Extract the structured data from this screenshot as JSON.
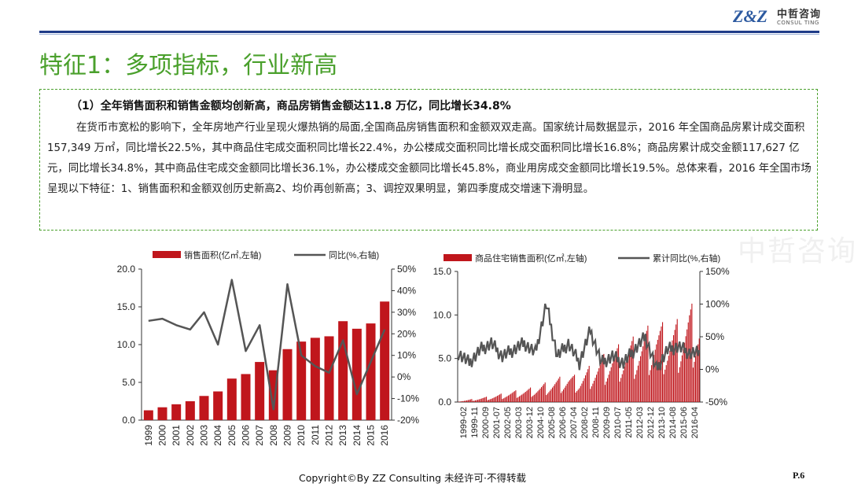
{
  "header": {
    "logo_mark": "Z&Z",
    "logo_cn": "中哲咨询",
    "logo_en": "CONSUL TING"
  },
  "page_title": "特征1：多项指标，行业新高",
  "subheading": "（1）全年销售面积和销售金额均创新高，商品房销售金额达11.8 万亿，同比增长34.8%",
  "paragraph": "在货币市宽松的影响下，全年房地产行业呈现火爆热销的局面,全国商品房销售面积和金额双双走高。国家统计局数据显示，2016 年全国商品房累计成交面积157,349 万㎡，同比增长22.5%，其中商品住宅成交面积同比增长22.4%，办公楼成交面积同比增长成交面积同比增长16.8%；商品房累计成交金额117,627 亿元，同比增长34.8%，其中商品住宅成交金额同比增长36.1%，办公楼成交金额同比增长45.8%，商业用房成交金额同比增长19.5%。总体来看，2016 年全国市场呈现以下特征：1、销售面积和金额双创历史新高2、均价再创新高；3、调控双果明显，第四季度成交增速下滑明显。",
  "watermark": "中哲咨询",
  "footer": {
    "copyright": "Copyright©By  ZZ Consulting       未经许可·不得转载",
    "page": "P.6"
  },
  "colors": {
    "bar": "#c0161c",
    "line": "#555555",
    "title": "#4aa02c",
    "rule": "#1f3c88"
  },
  "chart_data": [
    {
      "type": "bar",
      "categories": [
        "1999",
        "2000",
        "2001",
        "2002",
        "2003",
        "2004",
        "2005",
        "2006",
        "2007",
        "2008",
        "2009",
        "2010",
        "2011",
        "2012",
        "2013",
        "2014",
        "2015",
        "2016"
      ],
      "series": [
        {
          "name": "销售面积(亿㎡,左轴)",
          "type": "bar",
          "axis": "left",
          "values": [
            1.3,
            1.7,
            2.1,
            2.5,
            3.2,
            3.8,
            5.5,
            6.1,
            7.7,
            6.6,
            9.4,
            10.4,
            10.9,
            11.1,
            13.1,
            12.1,
            12.8,
            15.7
          ]
        },
        {
          "name": "同比(%,右轴)",
          "type": "line",
          "axis": "right",
          "values": [
            26,
            27,
            24,
            22,
            30,
            15,
            45,
            12,
            24,
            -15,
            43,
            10,
            5,
            2,
            17,
            -8,
            7,
            22
          ]
        }
      ],
      "yleft_ticks": [
        "0.0",
        "5.0",
        "10.0",
        "15.0",
        "20.0"
      ],
      "yleft_range": [
        0,
        20
      ],
      "yright_ticks": [
        "-20%",
        "-10%",
        "0%",
        "10%",
        "20%",
        "30%",
        "40%",
        "50%"
      ],
      "yright_range": [
        -20,
        50
      ]
    },
    {
      "type": "bar",
      "categories": [
        "1999-02",
        "1999-11",
        "2000-09",
        "2001-07",
        "2002-05",
        "2003-03",
        "2003-12",
        "2004-10",
        "2005-08",
        "2006-06",
        "2007-04",
        "2008-02",
        "2008-11",
        "2009-09",
        "2010-07",
        "2011-05",
        "2012-03",
        "2012-12",
        "2013-10",
        "2014-08",
        "2015-06",
        "2016-04"
      ],
      "series": [
        {
          "name": "商品住宅销售面积(亿㎡,左轴)",
          "type": "bar",
          "axis": "left",
          "values": [
            0.1,
            0.3,
            0.5,
            0.7,
            1.0,
            1.3,
            1.5,
            1.8,
            2.3,
            2.8,
            3.3,
            3.0,
            4.3,
            5.3,
            6.3,
            6.9,
            7.6,
            8.6,
            9.4,
            9.0,
            9.6,
            11.3
          ]
        },
        {
          "name": "累计同比(%,右轴)",
          "type": "line",
          "axis": "right",
          "values": [
            25,
            10,
            30,
            40,
            20,
            30,
            40,
            25,
            100,
            20,
            40,
            10,
            60,
            10,
            20,
            10,
            30,
            50,
            0,
            30,
            35,
            25
          ]
        }
      ],
      "yleft_ticks": [
        "0.0",
        "5.0",
        "10.0",
        "15.0"
      ],
      "yleft_range": [
        0,
        15
      ],
      "yright_ticks": [
        "-50%",
        "0%",
        "50%",
        "100%",
        "150%"
      ],
      "yright_range": [
        -50,
        150
      ]
    }
  ]
}
